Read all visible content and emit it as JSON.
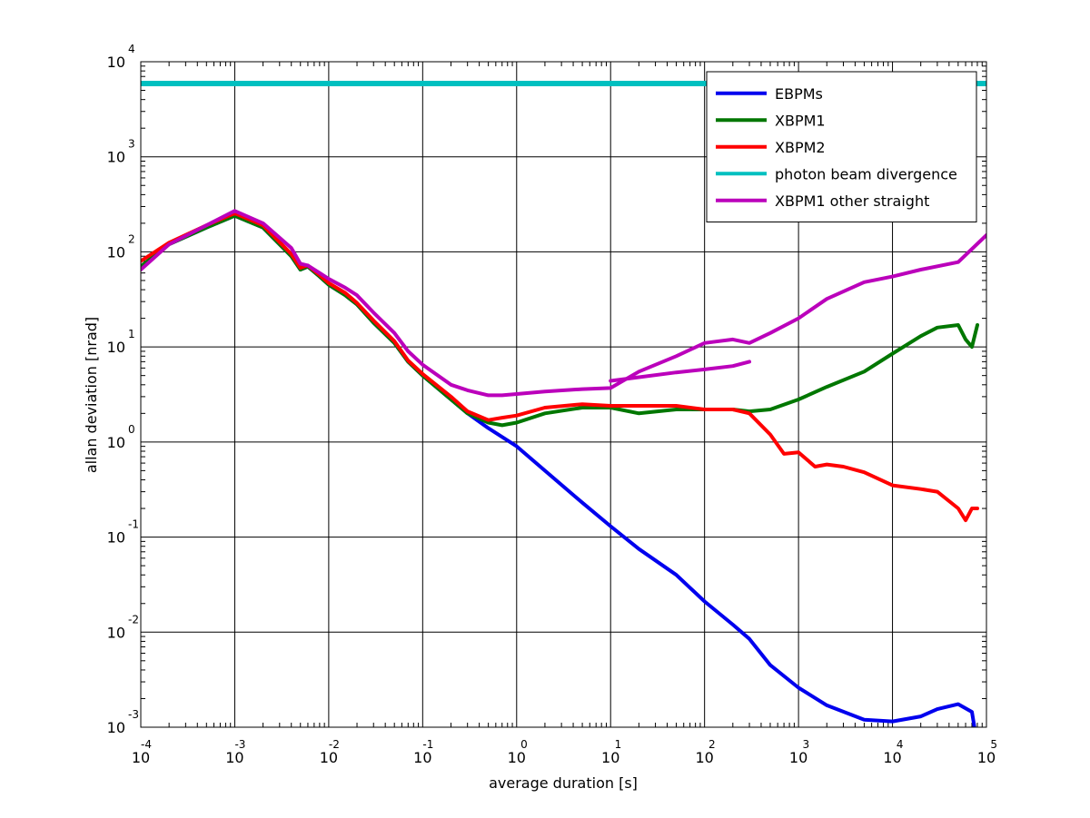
{
  "chart_data": {
    "type": "line",
    "title": "",
    "xlabel": "average duration [s]",
    "ylabel": "allan deviation [nrad]",
    "xscale": "log",
    "yscale": "log",
    "xlim": [
      0.0001,
      100000
    ],
    "ylim": [
      0.001,
      10000
    ],
    "grid": true,
    "legend_position": "top-right",
    "x_tick_labels": [
      {
        "base": "10",
        "exp": "-4"
      },
      {
        "base": "10",
        "exp": "-3"
      },
      {
        "base": "10",
        "exp": "-2"
      },
      {
        "base": "10",
        "exp": "-1"
      },
      {
        "base": "10",
        "exp": "0"
      },
      {
        "base": "10",
        "exp": "1"
      },
      {
        "base": "10",
        "exp": "2"
      },
      {
        "base": "10",
        "exp": "3"
      },
      {
        "base": "10",
        "exp": "4"
      },
      {
        "base": "10",
        "exp": "5"
      }
    ],
    "y_tick_labels": [
      {
        "base": "10",
        "exp": "-3"
      },
      {
        "base": "10",
        "exp": "-2"
      },
      {
        "base": "10",
        "exp": "-1"
      },
      {
        "base": "10",
        "exp": "0"
      },
      {
        "base": "10",
        "exp": "1"
      },
      {
        "base": "10",
        "exp": "2"
      },
      {
        "base": "10",
        "exp": "3"
      },
      {
        "base": "10",
        "exp": "4"
      }
    ],
    "series": [
      {
        "name": "EBPMs",
        "color": "#0000ee",
        "x": [
          0.0001,
          0.0002,
          0.0005,
          0.001,
          0.002,
          0.004,
          0.005,
          0.006,
          0.008,
          0.01,
          0.015,
          0.02,
          0.03,
          0.05,
          0.07,
          0.1,
          0.2,
          0.3,
          0.5,
          1,
          2,
          5,
          10,
          20,
          50,
          100,
          200,
          300,
          500,
          1000,
          2000,
          5000,
          10000,
          20000,
          30000,
          50000,
          70000,
          80000
        ],
        "y": [
          70,
          120,
          180,
          240,
          180,
          90,
          65,
          70,
          55,
          45,
          35,
          28,
          18,
          11,
          7,
          5,
          2.8,
          2,
          1.4,
          0.9,
          0.5,
          0.23,
          0.13,
          0.075,
          0.04,
          0.021,
          0.012,
          0.0085,
          0.0045,
          0.0026,
          0.0017,
          0.0012,
          0.00115,
          0.0013,
          0.00155,
          0.00175,
          0.00145,
          0.00065
        ]
      },
      {
        "name": "XBPM1",
        "color": "#007700",
        "x": [
          0.0001,
          0.0002,
          0.0005,
          0.001,
          0.002,
          0.004,
          0.005,
          0.006,
          0.008,
          0.01,
          0.015,
          0.02,
          0.03,
          0.05,
          0.07,
          0.1,
          0.2,
          0.3,
          0.5,
          0.7,
          1,
          2,
          5,
          10,
          20,
          50,
          100,
          200,
          300,
          500,
          1000,
          2000,
          5000,
          10000,
          20000,
          30000,
          50000,
          60000,
          70000,
          80000
        ],
        "y": [
          70,
          120,
          180,
          240,
          180,
          90,
          65,
          70,
          55,
          45,
          35,
          28,
          18,
          11,
          7,
          5,
          2.8,
          2,
          1.6,
          1.5,
          1.6,
          2,
          2.3,
          2.3,
          2,
          2.2,
          2.2,
          2.2,
          2.1,
          2.2,
          2.8,
          3.8,
          5.5,
          8.5,
          13,
          16,
          17,
          12,
          10,
          17
        ]
      },
      {
        "name": "XBPM2",
        "color": "#ff0000",
        "x": [
          0.0001,
          0.0002,
          0.0005,
          0.001,
          0.002,
          0.004,
          0.005,
          0.006,
          0.008,
          0.01,
          0.015,
          0.02,
          0.03,
          0.05,
          0.07,
          0.1,
          0.2,
          0.3,
          0.5,
          0.7,
          1,
          2,
          5,
          10,
          20,
          50,
          100,
          200,
          300,
          500,
          700,
          1000,
          1500,
          2000,
          3000,
          5000,
          10000,
          20000,
          30000,
          50000,
          60000,
          70000,
          80000
        ],
        "y": [
          80,
          125,
          190,
          255,
          190,
          95,
          68,
          72,
          57,
          47,
          37,
          29,
          19,
          11.5,
          7.2,
          5.2,
          3,
          2.1,
          1.7,
          1.8,
          1.9,
          2.3,
          2.5,
          2.4,
          2.4,
          2.4,
          2.2,
          2.2,
          2,
          1.2,
          0.75,
          0.78,
          0.55,
          0.58,
          0.55,
          0.48,
          0.35,
          0.32,
          0.3,
          0.2,
          0.15,
          0.2,
          0.2
        ]
      },
      {
        "name": "photon beam divergence",
        "color": "#00c0c0",
        "x": [
          0.0001,
          100000
        ],
        "y": [
          5900,
          5900
        ]
      },
      {
        "name": "XBPM1 other straight",
        "color": "#bb00bb",
        "x": [
          0.0001,
          0.0002,
          0.0005,
          0.001,
          0.002,
          0.004,
          0.005,
          0.006,
          0.008,
          0.01,
          0.015,
          0.02,
          0.03,
          0.05,
          0.07,
          0.1,
          0.2,
          0.3,
          0.5,
          0.7,
          1,
          2,
          5,
          10,
          20,
          50,
          100,
          200,
          300,
          500,
          1000,
          2000,
          5000,
          10000,
          20000,
          50000,
          100000
        ],
        "y": [
          65,
          120,
          190,
          270,
          200,
          110,
          75,
          72,
          60,
          52,
          42,
          35,
          23,
          14,
          9,
          6.5,
          4,
          3.5,
          3.1,
          3.1,
          3.2,
          3.4,
          3.6,
          3.7,
          5.5,
          8,
          11,
          12,
          11,
          14,
          20,
          32,
          48,
          55,
          65,
          78,
          150
        ]
      },
      {
        "name": "",
        "color": "#bb00bb",
        "x": [
          10,
          20,
          50,
          100,
          200,
          300
        ],
        "y": [
          4.4,
          4.8,
          5.4,
          5.8,
          6.3,
          7.0
        ]
      }
    ]
  }
}
